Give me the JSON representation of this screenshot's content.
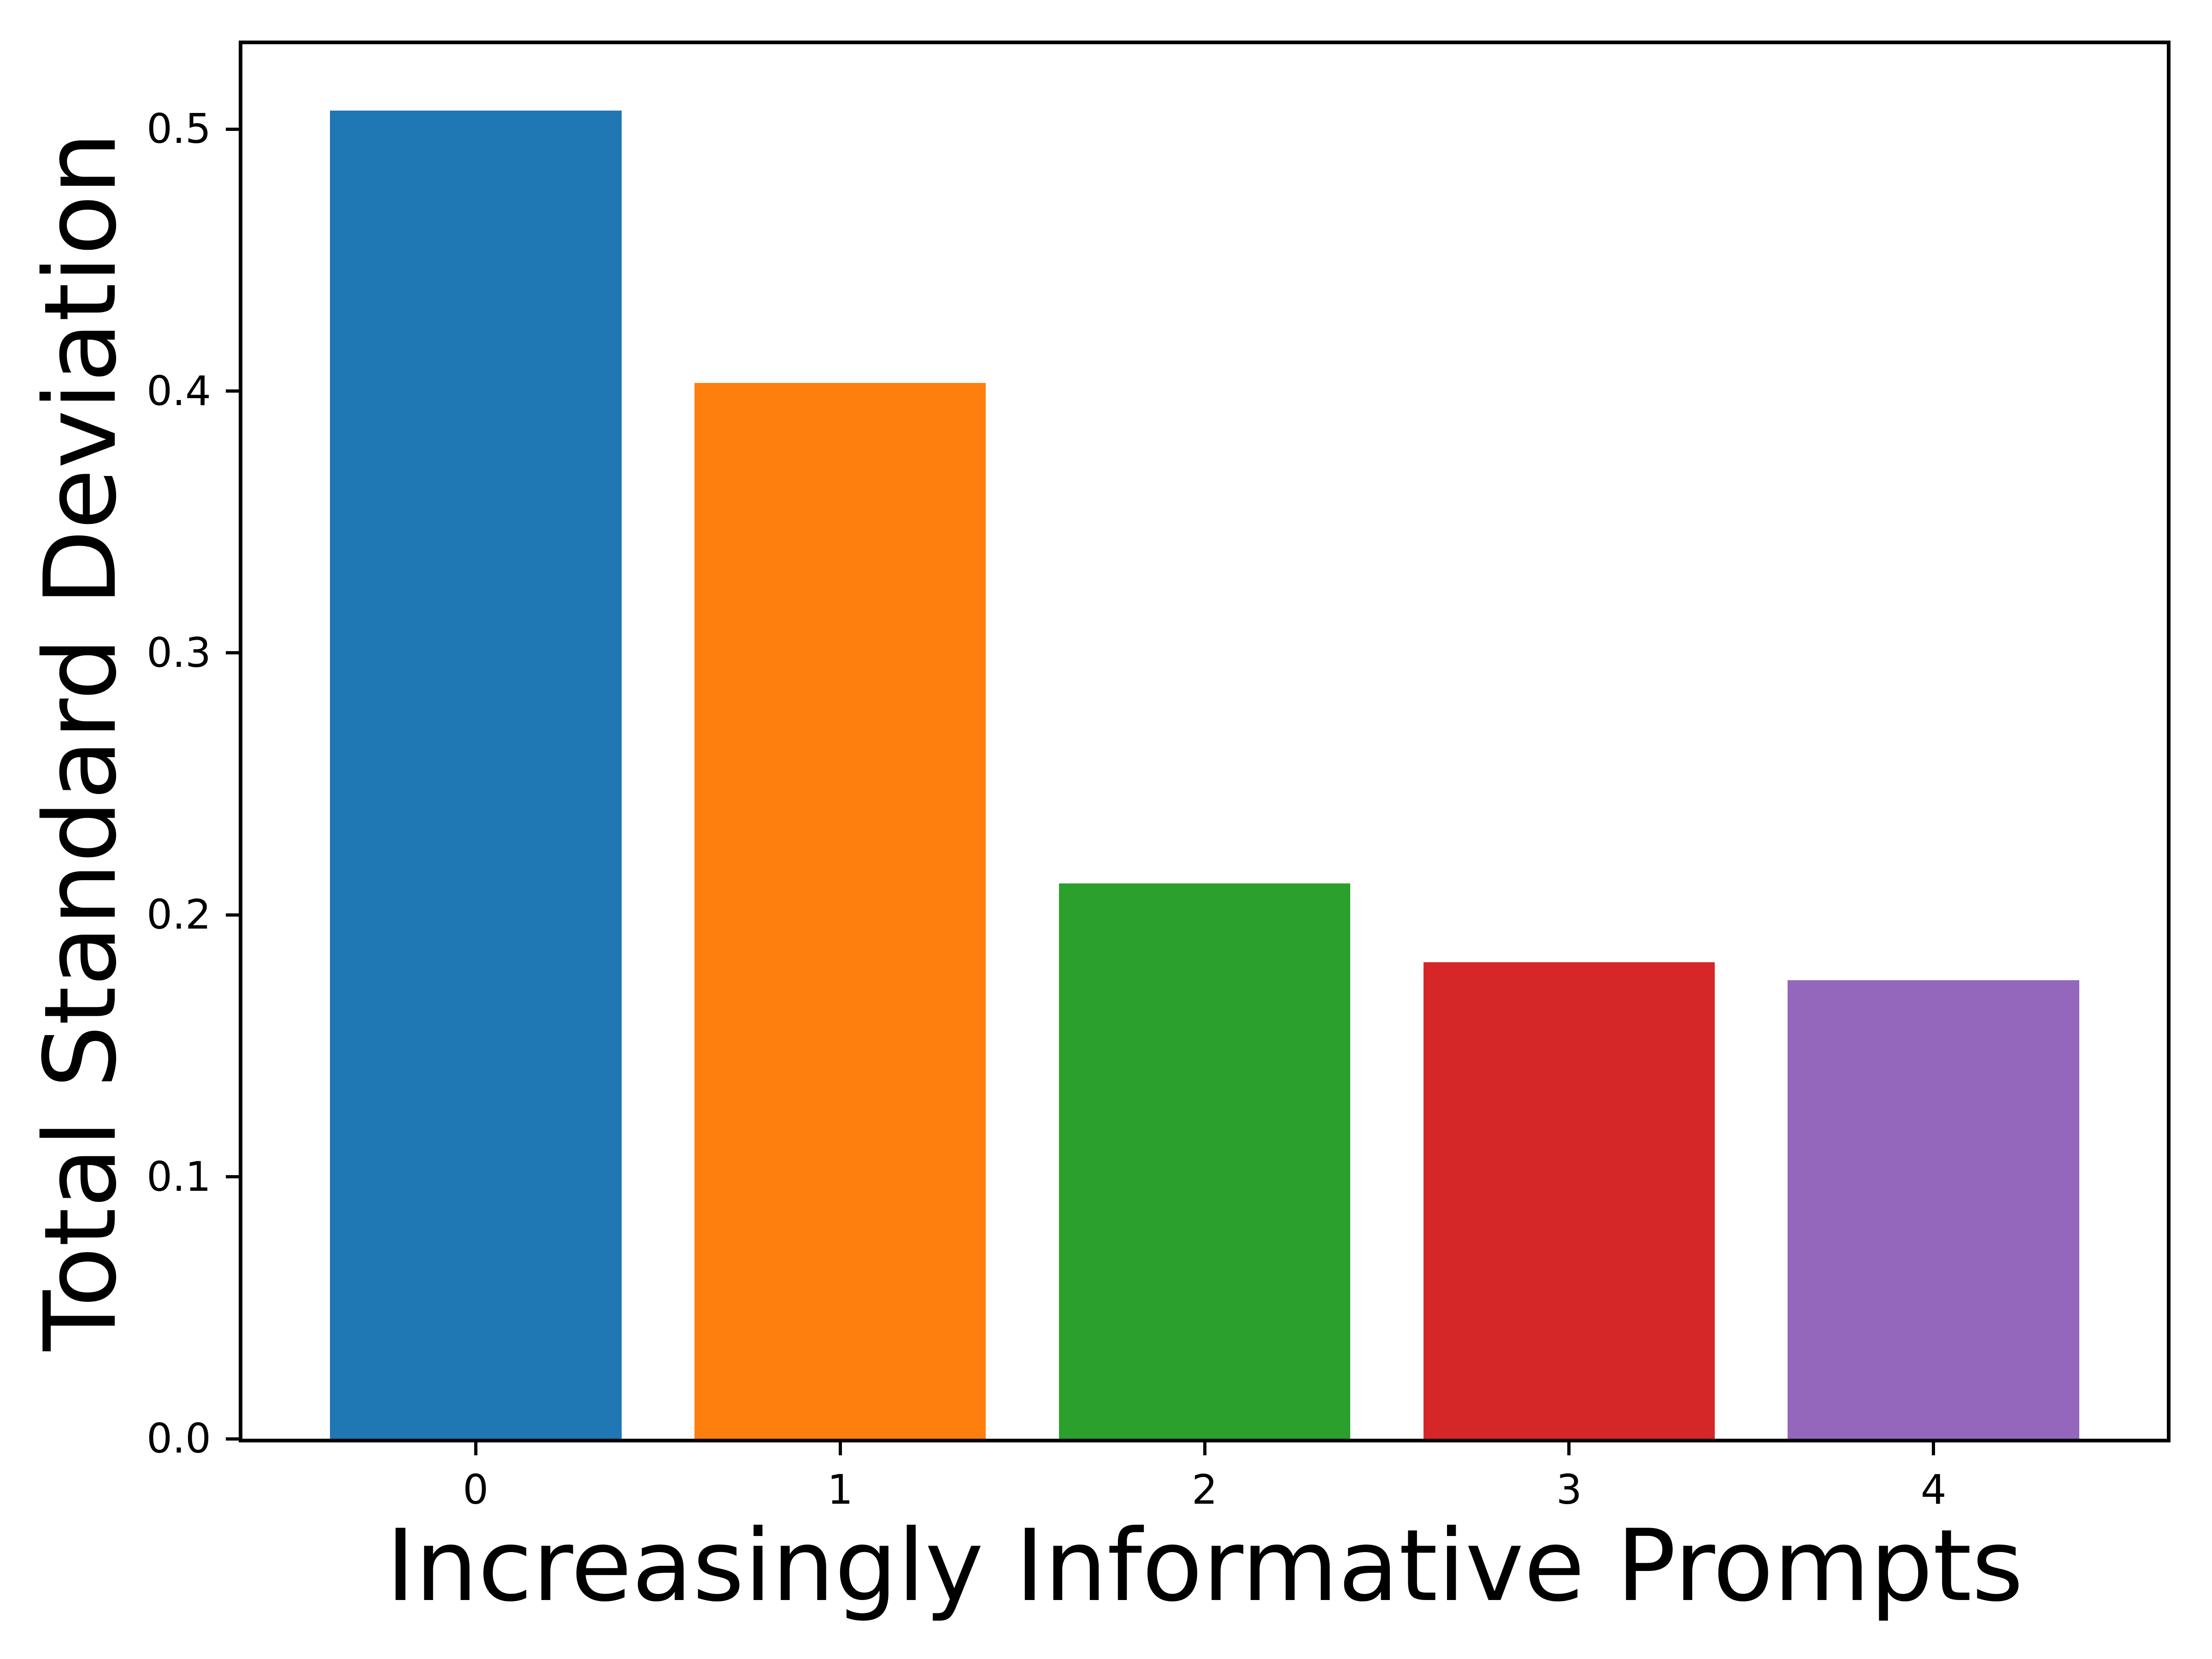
{
  "figure": {
    "background": "#ffffff",
    "text_color": "#000000",
    "spine_color": "#000000"
  },
  "chart_data": {
    "type": "bar",
    "title": "",
    "categories": [
      "0",
      "1",
      "2",
      "3",
      "4"
    ],
    "values": [
      0.507,
      0.403,
      0.212,
      0.182,
      0.175
    ],
    "bar_colors": [
      "#1f77b4",
      "#ff7f0e",
      "#2ca02c",
      "#d62728",
      "#9467bd"
    ],
    "xlabel": "Increasingly Informative Prompts",
    "ylabel": "Total Standard Deviation",
    "xlim": [
      -0.64,
      4.64
    ],
    "ylim": [
      0,
      0.5324
    ],
    "yticks": [
      "0.0",
      "0.1",
      "0.2",
      "0.3",
      "0.4",
      "0.5"
    ],
    "bar_width": 0.8,
    "grid": false,
    "legend": false
  }
}
